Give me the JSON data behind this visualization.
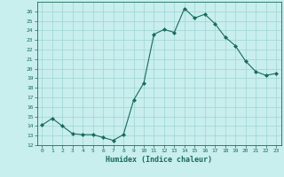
{
  "x": [
    0,
    1,
    2,
    3,
    4,
    5,
    6,
    7,
    8,
    9,
    10,
    11,
    12,
    13,
    14,
    15,
    16,
    17,
    18,
    19,
    20,
    21,
    22,
    23
  ],
  "y": [
    14.1,
    14.8,
    14.0,
    13.2,
    13.1,
    13.1,
    12.8,
    12.5,
    13.1,
    16.7,
    18.5,
    23.6,
    24.1,
    23.8,
    26.3,
    25.3,
    25.7,
    24.7,
    23.3,
    22.4,
    20.8,
    19.7,
    19.3,
    19.5
  ],
  "xlabel": "Humidex (Indice chaleur)",
  "ylabel": "",
  "ylim": [
    12,
    27
  ],
  "xlim": [
    -0.5,
    23.5
  ],
  "yticks": [
    12,
    13,
    14,
    15,
    16,
    17,
    18,
    19,
    20,
    21,
    22,
    23,
    24,
    25,
    26
  ],
  "xticks": [
    0,
    1,
    2,
    3,
    4,
    5,
    6,
    7,
    8,
    9,
    10,
    11,
    12,
    13,
    14,
    15,
    16,
    17,
    18,
    19,
    20,
    21,
    22,
    23
  ],
  "line_color": "#1a6b5a",
  "marker_color": "#1a6b5a",
  "bg_color": "#c8eeee",
  "grid_color": "#9fd4d4",
  "label_color": "#1a6b5a",
  "tick_color": "#1a6b5a"
}
